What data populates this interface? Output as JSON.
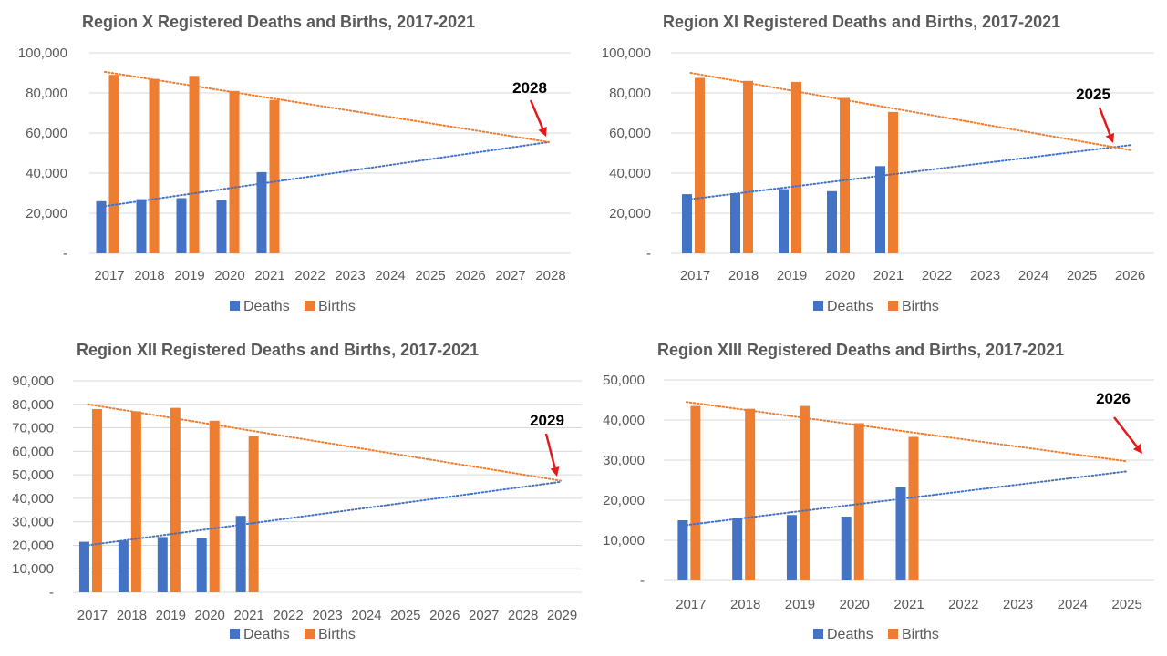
{
  "chart_data": [
    {
      "type": "bar",
      "title": "Region X Registered Deaths and Births, 2017-2021",
      "categories": [
        "2017",
        "2018",
        "2019",
        "2020",
        "2021",
        "2022",
        "2023",
        "2024",
        "2025",
        "2026",
        "2027",
        "2028"
      ],
      "ylim": [
        0,
        100000
      ],
      "yticks": [
        "-",
        "20,000",
        "40,000",
        "60,000",
        "80,000",
        "100,000"
      ],
      "series": [
        {
          "name": "Deaths",
          "values": [
            26000,
            27000,
            27500,
            26500,
            40500,
            null,
            null,
            null,
            null,
            null,
            null,
            null
          ]
        },
        {
          "name": "Births",
          "values": [
            89000,
            87000,
            88500,
            81000,
            76500,
            null,
            null,
            null,
            null,
            null,
            null,
            null
          ]
        }
      ],
      "trendlines": [
        {
          "series": "Deaths",
          "from": {
            "x": "2017",
            "y": 23500
          },
          "to": {
            "x": "2028",
            "y": 55500
          }
        },
        {
          "series": "Births",
          "from": {
            "x": "2017",
            "y": 90500
          },
          "to": {
            "x": "2028",
            "y": 55500
          }
        }
      ],
      "annotation": {
        "text": "2028",
        "points_to": "2028"
      },
      "legend": "bottom",
      "grid": true
    },
    {
      "type": "bar",
      "title": "Region XI Registered Deaths and Births, 2017-2021",
      "categories": [
        "2017",
        "2018",
        "2019",
        "2020",
        "2021",
        "2022",
        "2023",
        "2024",
        "2025",
        "2026"
      ],
      "ylim": [
        0,
        100000
      ],
      "yticks": [
        "-",
        "20,000",
        "40,000",
        "60,000",
        "80,000",
        "100,000"
      ],
      "series": [
        {
          "name": "Deaths",
          "values": [
            29500,
            30000,
            32000,
            31000,
            43500,
            null,
            null,
            null,
            null,
            null
          ]
        },
        {
          "name": "Births",
          "values": [
            87500,
            86000,
            85500,
            77500,
            70500,
            null,
            null,
            null,
            null,
            null
          ]
        }
      ],
      "trendlines": [
        {
          "series": "Deaths",
          "from": {
            "x": "2017",
            "y": 27000
          },
          "to": {
            "x": "2026",
            "y": 54000
          }
        },
        {
          "series": "Births",
          "from": {
            "x": "2017",
            "y": 90000
          },
          "to": {
            "x": "2026",
            "y": 51500
          }
        }
      ],
      "annotation": {
        "text": "2025",
        "points_to": "2025"
      },
      "legend": "bottom",
      "grid": true
    },
    {
      "type": "bar",
      "title": "Region XII Registered Deaths and Births, 2017-2021",
      "categories": [
        "2017",
        "2018",
        "2019",
        "2020",
        "2021",
        "2022",
        "2023",
        "2024",
        "2025",
        "2026",
        "2027",
        "2028",
        "2029"
      ],
      "ylim": [
        0,
        90000
      ],
      "yticks": [
        "-",
        "10,000",
        "20,000",
        "30,000",
        "40,000",
        "50,000",
        "60,000",
        "70,000",
        "80,000",
        "90,000"
      ],
      "series": [
        {
          "name": "Deaths",
          "values": [
            21500,
            22000,
            23500,
            23000,
            32500,
            null,
            null,
            null,
            null,
            null,
            null,
            null,
            null
          ]
        },
        {
          "name": "Births",
          "values": [
            78000,
            77000,
            78500,
            73000,
            66500,
            null,
            null,
            null,
            null,
            null,
            null,
            null,
            null
          ]
        }
      ],
      "trendlines": [
        {
          "series": "Deaths",
          "from": {
            "x": "2017",
            "y": 20000
          },
          "to": {
            "x": "2029",
            "y": 47000
          }
        },
        {
          "series": "Births",
          "from": {
            "x": "2017",
            "y": 80000
          },
          "to": {
            "x": "2029",
            "y": 47500
          }
        }
      ],
      "annotation": {
        "text": "2029",
        "points_to": "2029"
      },
      "legend": "bottom",
      "grid": true
    },
    {
      "type": "bar",
      "title": "Region XIII Registered Deaths and Births, 2017-2021",
      "categories": [
        "2017",
        "2018",
        "2019",
        "2020",
        "2021",
        "2022",
        "2023",
        "2024",
        "2025"
      ],
      "ylim": [
        0,
        50000
      ],
      "yticks": [
        "-",
        "10,000",
        "20,000",
        "30,000",
        "40,000",
        "50,000"
      ],
      "series": [
        {
          "name": "Deaths",
          "values": [
            15000,
            15500,
            16300,
            15900,
            23200,
            null,
            null,
            null,
            null
          ]
        },
        {
          "name": "Births",
          "values": [
            43500,
            42800,
            43500,
            39200,
            35800,
            null,
            null,
            null,
            null
          ]
        }
      ],
      "trendlines": [
        {
          "series": "Deaths",
          "from": {
            "x": "2017",
            "y": 13800
          },
          "to": {
            "x": "2025",
            "y": 27200
          }
        },
        {
          "series": "Births",
          "from": {
            "x": "2017",
            "y": 44500
          },
          "to": {
            "x": "2025",
            "y": 29700
          }
        }
      ],
      "annotation": {
        "text": "2026",
        "points_to": "2026"
      },
      "legend": "bottom",
      "grid": true
    }
  ],
  "colors": {
    "deaths": "#4472C4",
    "births": "#ED7D31",
    "arrow": "#E31A1C",
    "grid": "#D9D9D9",
    "text": "#595959",
    "title": "#595959"
  }
}
